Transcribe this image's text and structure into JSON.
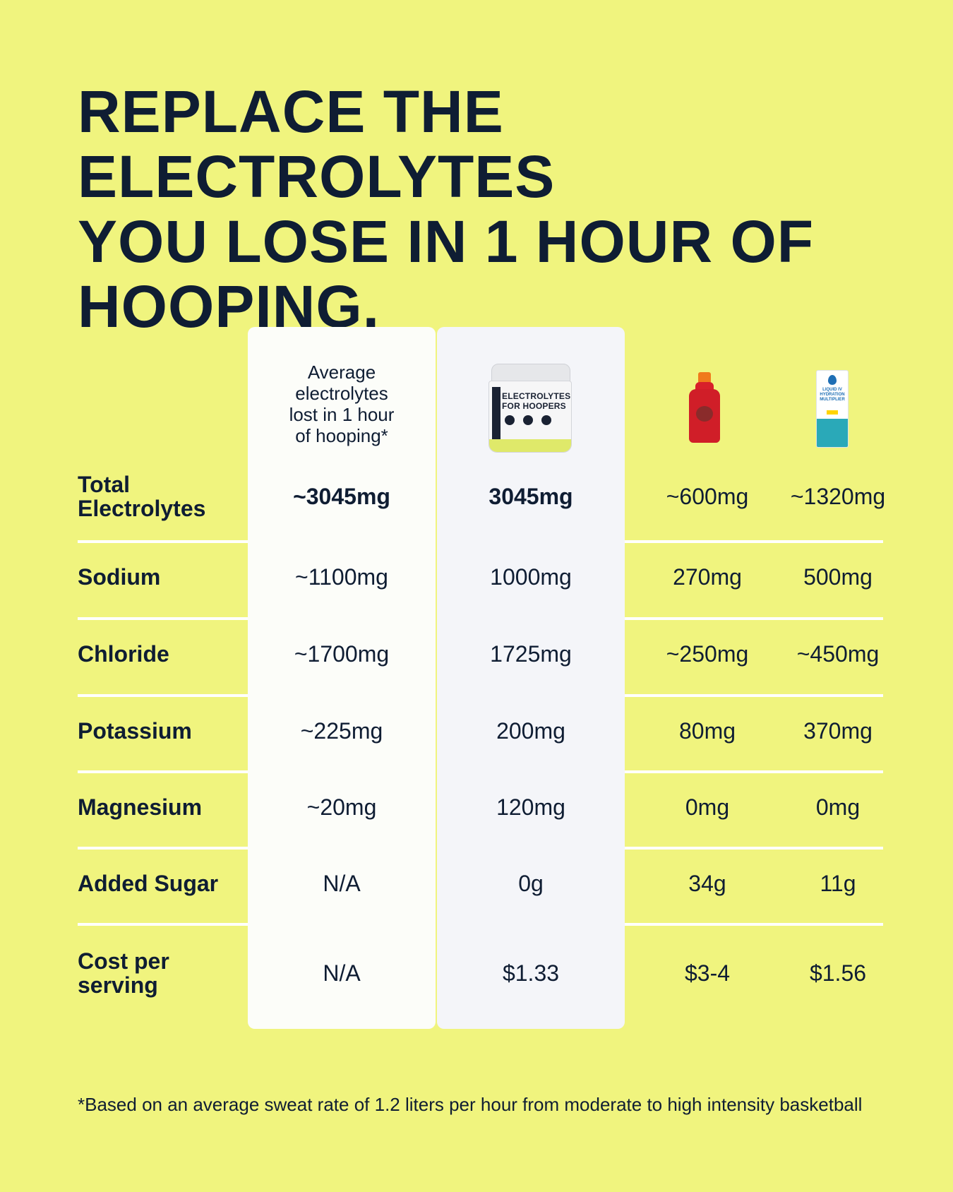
{
  "headline": [
    "REPLACE THE ELECTROLYTES",
    "YOU LOSE IN 1 HOUR OF",
    "HOOPING."
  ],
  "columns": {
    "average_header": [
      "Average",
      "electrolytes",
      "lost in 1 hour",
      "of hooping*"
    ],
    "product_tub_label": [
      "ELECTROLYTES",
      "FOR HOOPERS"
    ],
    "liquid_iv_label": "LIQUID IV HYDRATION MULTIPLIER"
  },
  "rows": [
    {
      "label": "Total Electrolytes",
      "avg": "~3045mg",
      "ours": "3045mg",
      "gatorade": "~600mg",
      "liquid_iv": "~1320mg"
    },
    {
      "label": "Sodium",
      "avg": "~1100mg",
      "ours": "1000mg",
      "gatorade": "270mg",
      "liquid_iv": "500mg"
    },
    {
      "label": "Chloride",
      "avg": "~1700mg",
      "ours": "1725mg",
      "gatorade": "~250mg",
      "liquid_iv": "~450mg"
    },
    {
      "label": "Potassium",
      "avg": "~225mg",
      "ours": "200mg",
      "gatorade": "80mg",
      "liquid_iv": "370mg"
    },
    {
      "label": "Magnesium",
      "avg": "~20mg",
      "ours": "120mg",
      "gatorade": "0mg",
      "liquid_iv": "0mg"
    },
    {
      "label": "Added Sugar",
      "avg": "N/A",
      "ours": "0g",
      "gatorade": "34g",
      "liquid_iv": "11g"
    },
    {
      "label": "Cost per serving",
      "avg": "N/A",
      "ours": "$1.33",
      "gatorade": "$3-4",
      "liquid_iv": "$1.56"
    }
  ],
  "footnote": "*Based on an average sweat rate of 1.2 liters per hour from moderate to high intensity basketball",
  "colors": {
    "background": "#f0f47e",
    "text": "#0f1d33",
    "avg_column": "#fcfdf9",
    "product_column": "#f4f5f9"
  }
}
